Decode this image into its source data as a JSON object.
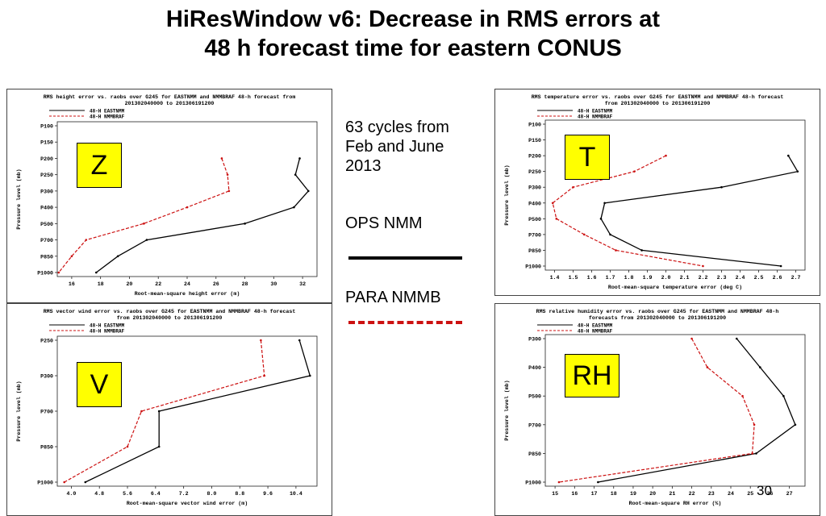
{
  "slide": {
    "title_line1": "HiResWindow v6: Decrease in RMS errors at",
    "title_line2": "48 h forecast time for eastern CONUS",
    "note_line1": "63 cycles from",
    "note_line2": "Feb and June",
    "note_line3": "2013",
    "ops_label": "OPS NMM",
    "para_label": "PARA NMMB",
    "page_number": "30",
    "colors": {
      "ops": "#000000",
      "para": "#cc1111",
      "badge": "#ffff00"
    }
  },
  "chart_data": [
    {
      "type": "line",
      "badge": "Z",
      "title_line1": "RMS height error vs. raobs over G245 for EASTNMM and NMMBRAF 48-h forecast from",
      "title_line2": "201302040000 to 201306191200",
      "xlabel": "Root-mean-square height error (m)",
      "ylabel": "Pressure level (mb)",
      "xlim": [
        15,
        33
      ],
      "xticks": [
        16,
        18,
        20,
        22,
        24,
        26,
        28,
        30,
        32
      ],
      "y_levels": [
        "P100",
        "P150",
        "P200",
        "P250",
        "P300",
        "P400",
        "P500",
        "P700",
        "P850",
        "P1000"
      ],
      "legend": [
        "48-H EASTNMM",
        "48-H NMMBRAF"
      ],
      "series": [
        {
          "name": "48-H EASTNMM",
          "levels": [
            "P200",
            "P250",
            "P300",
            "P400",
            "P500",
            "P700",
            "P850",
            "P1000"
          ],
          "values": [
            31.8,
            31.5,
            32.4,
            31.4,
            28.0,
            21.2,
            19.2,
            17.7
          ]
        },
        {
          "name": "48-H NMMBRAF",
          "levels": [
            "P200",
            "P250",
            "P300",
            "P400",
            "P500",
            "P700",
            "P850",
            "P1000"
          ],
          "values": [
            26.4,
            26.8,
            26.9,
            24.0,
            21.0,
            17.0,
            16.0,
            15.1
          ]
        }
      ]
    },
    {
      "type": "line",
      "badge": "T",
      "title_line1": "RMS temperature error vs. raobs over G245 for EASTNMM and NMMBRAF 48-h forecast",
      "title_line2": "from 201302040000 to 201306191200",
      "xlabel": "Root-mean-square temperature error (deg C)",
      "ylabel": "Pressure level (mb)",
      "xlim": [
        1.35,
        2.75
      ],
      "xticks": [
        1.4,
        1.5,
        1.6,
        1.7,
        1.8,
        1.9,
        2.0,
        2.1,
        2.2,
        2.3,
        2.4,
        2.5,
        2.6,
        2.7
      ],
      "xtick_labels": [
        "1.4",
        "1.5",
        "1.6",
        "1.7",
        "1.8",
        "1.9",
        "2.0",
        "2.1",
        "2.2",
        "2.3",
        "2.4",
        "2.5",
        "2.6",
        "2.7"
      ],
      "y_levels": [
        "P100",
        "P150",
        "P200",
        "P250",
        "P300",
        "P400",
        "P500",
        "P700",
        "P850",
        "P1000"
      ],
      "legend": [
        "48-H EASTNMM",
        "48-H NMMBRAF"
      ],
      "series": [
        {
          "name": "48-H EASTNMM",
          "levels": [
            "P200",
            "P250",
            "P300",
            "P400",
            "P500",
            "P700",
            "P850",
            "P1000"
          ],
          "values": [
            2.66,
            2.71,
            2.3,
            1.67,
            1.65,
            1.7,
            1.87,
            2.62
          ]
        },
        {
          "name": "48-H NMMBRAF",
          "levels": [
            "P200",
            "P250",
            "P300",
            "P400",
            "P500",
            "P700",
            "P850",
            "P1000"
          ],
          "values": [
            2.0,
            1.83,
            1.5,
            1.39,
            1.41,
            1.56,
            1.73,
            2.2
          ]
        }
      ]
    },
    {
      "type": "line",
      "badge": "V",
      "title_line1": "RMS vector wind error vs. raobs over G245 for EASTNMM and NMMBRAF 48-h forecast",
      "title_line2": "from 201302040000 to 201306191200",
      "xlabel": "Root-mean-square vector wind error (m)",
      "ylabel": "Pressure level (mb)",
      "xlim": [
        3.6,
        11.0
      ],
      "xticks": [
        4.0,
        4.8,
        5.6,
        6.4,
        7.2,
        8.0,
        8.8,
        9.6,
        10.4
      ],
      "xtick_labels": [
        "4.0",
        "4.8",
        "5.6",
        "6.4",
        "7.2",
        "8.0",
        "8.8",
        "9.6",
        "10.4"
      ],
      "y_levels": [
        "P250",
        "P300",
        "P700",
        "P850",
        "P1000"
      ],
      "legend": [
        "48-H EASTNMM",
        "48-H NMMBRAF"
      ],
      "series": [
        {
          "name": "48-H EASTNMM",
          "levels": [
            "P250",
            "P300",
            "P700",
            "P850",
            "P1000"
          ],
          "values": [
            10.5,
            10.8,
            6.5,
            6.5,
            4.4
          ]
        },
        {
          "name": "48-H NMMBRAF",
          "levels": [
            "P250",
            "P300",
            "P700",
            "P850",
            "P1000"
          ],
          "values": [
            9.4,
            9.5,
            6.0,
            5.6,
            3.8
          ]
        }
      ]
    },
    {
      "type": "line",
      "badge": "RH",
      "title_line1": "RMS relative humidity error vs. raobs over G245 for EASTNMM and NMMBRAF 48-h",
      "title_line2": "forecasts from 201302040000 to 201306191200",
      "xlabel": "Root-mean-square RH error (%)",
      "ylabel": "Pressure level (mb)",
      "xlim": [
        14.5,
        27.8
      ],
      "xticks": [
        15,
        16,
        17,
        18,
        19,
        20,
        21,
        22,
        23,
        24,
        25,
        26,
        27
      ],
      "y_levels": [
        "P300",
        "P400",
        "P500",
        "P700",
        "P850",
        "P1000"
      ],
      "legend": [
        "48-H EASTNMM",
        "48-H NMMBRAF"
      ],
      "series": [
        {
          "name": "48-H EASTNMM",
          "levels": [
            "P300",
            "P400",
            "P500",
            "P700",
            "P850",
            "P1000"
          ],
          "values": [
            24.3,
            25.5,
            26.7,
            27.3,
            25.3,
            17.2
          ]
        },
        {
          "name": "48-H NMMBRAF",
          "levels": [
            "P300",
            "P400",
            "P500",
            "P700",
            "P850",
            "P1000"
          ],
          "values": [
            22.0,
            22.8,
            24.6,
            25.2,
            25.1,
            15.2
          ]
        }
      ]
    }
  ]
}
